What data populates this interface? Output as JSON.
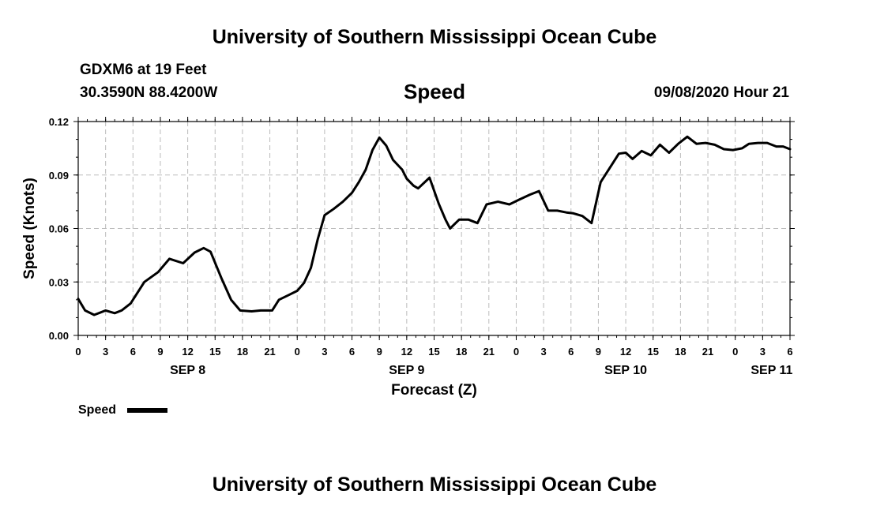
{
  "header": {
    "title": "University of Southern Mississippi Ocean Cube",
    "station": "GDXM6 at 19 Feet",
    "location": "30.3590N 88.4200W",
    "variable": "Speed",
    "issued": "09/08/2020 Hour 21"
  },
  "footer": {
    "title": "University of Southern Mississippi Ocean Cube"
  },
  "chart_data": {
    "type": "line",
    "title": "Speed",
    "xlabel": "Forecast (Z)",
    "ylabel": "Speed (Knots)",
    "ylim": [
      0,
      0.12
    ],
    "yticks": [
      "0.00",
      "0.03",
      "0.06",
      "0.09",
      "0.12"
    ],
    "xlim": [
      0,
      78
    ],
    "x_unit": "hours since SEP 8 00Z",
    "xtick_labels": [
      "0",
      "3",
      "6",
      "9",
      "12",
      "15",
      "18",
      "21",
      "0",
      "3",
      "6",
      "9",
      "12",
      "15",
      "18",
      "21",
      "0",
      "3",
      "6",
      "9",
      "12",
      "15",
      "18",
      "21",
      "0",
      "3",
      "6"
    ],
    "day_labels": [
      {
        "label": "SEP 8",
        "hour": 12
      },
      {
        "label": "SEP 9",
        "hour": 36
      },
      {
        "label": "SEP 10",
        "hour": 60
      },
      {
        "label": "SEP 11",
        "hour": 76
      }
    ],
    "grid": true,
    "legend": {
      "label": "Speed",
      "placement": "bottom-left"
    },
    "series": [
      {
        "name": "Speed",
        "color": "#000000",
        "x": [
          0,
          0.75,
          1.75,
          3,
          4,
          4.75,
          5.75,
          7.25,
          8.75,
          10,
          11.5,
          12.75,
          13.75,
          14.5,
          15.75,
          16.75,
          17.75,
          19,
          20,
          21.25,
          22,
          23,
          24,
          24.75,
          25.5,
          26.25,
          27,
          28,
          29,
          30,
          30.75,
          31.5,
          32.25,
          33,
          33.75,
          34.5,
          35.5,
          36,
          36.75,
          37.25,
          38.5,
          39.5,
          40.25,
          40.75,
          41.75,
          42.75,
          43.75,
          44.75,
          46,
          47.25,
          48.25,
          49.5,
          50.5,
          51.5,
          52.5,
          53.5,
          54.25,
          55.25,
          56.25,
          57.25,
          58.25,
          59.25,
          60,
          60.75,
          61.75,
          62.75,
          63.75,
          64.75,
          65.75,
          66.75,
          67.75,
          68.75,
          69.75,
          70.75,
          71.75,
          72.75,
          73.5,
          74.5,
          75.5,
          76.5,
          77.25,
          78
        ],
        "values": [
          0.0205,
          0.014,
          0.0115,
          0.014,
          0.0125,
          0.014,
          0.018,
          0.03,
          0.0355,
          0.043,
          0.0405,
          0.0465,
          0.049,
          0.047,
          0.0315,
          0.02,
          0.014,
          0.0135,
          0.014,
          0.014,
          0.02,
          0.0225,
          0.025,
          0.0295,
          0.038,
          0.054,
          0.0675,
          0.071,
          0.075,
          0.08,
          0.086,
          0.093,
          0.104,
          0.111,
          0.1065,
          0.0985,
          0.093,
          0.088,
          0.084,
          0.0825,
          0.0885,
          0.074,
          0.065,
          0.06,
          0.065,
          0.065,
          0.063,
          0.0735,
          0.075,
          0.0735,
          0.076,
          0.079,
          0.081,
          0.07,
          0.07,
          0.069,
          0.0685,
          0.067,
          0.063,
          0.086,
          0.094,
          0.102,
          0.1025,
          0.099,
          0.1035,
          0.101,
          0.107,
          0.1025,
          0.1075,
          0.1115,
          0.1075,
          0.108,
          0.107,
          0.1045,
          0.104,
          0.105,
          0.1075,
          0.108,
          0.108,
          0.106,
          0.106,
          0.1045
        ]
      }
    ]
  }
}
